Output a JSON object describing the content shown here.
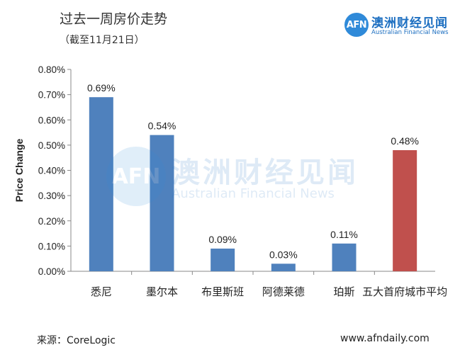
{
  "header": {
    "title": "过去一周房价走势",
    "subtitle": "（截至11月21日）"
  },
  "logo": {
    "mark": "AFN",
    "name_cn": "澳洲财经见闻",
    "name_en": "Australian Financial News"
  },
  "footer": {
    "source": "来源：CoreLogic",
    "site": "www.afndaily.com"
  },
  "chart_data": {
    "type": "bar",
    "title": "",
    "xlabel": "",
    "ylabel": "Price Change",
    "categories": [
      "悉尼",
      "墨尔本",
      "布里斯班",
      "阿德莱德",
      "珀斯",
      "五大首府城市平均"
    ],
    "values": [
      0.0069,
      0.0054,
      0.0009,
      0.0003,
      0.0011,
      0.0048
    ],
    "data_labels": [
      "0.69%",
      "0.54%",
      "0.09%",
      "0.03%",
      "0.11%",
      "0.48%"
    ],
    "yticks": [
      "0.00%",
      "0.10%",
      "0.20%",
      "0.30%",
      "0.40%",
      "0.50%",
      "0.60%",
      "0.70%",
      "0.80%"
    ],
    "ylim": [
      0,
      0.008
    ],
    "grid": false,
    "legend": "none",
    "colors": [
      "#4f81bd",
      "#4f81bd",
      "#4f81bd",
      "#4f81bd",
      "#4f81bd",
      "#c0504d"
    ]
  }
}
